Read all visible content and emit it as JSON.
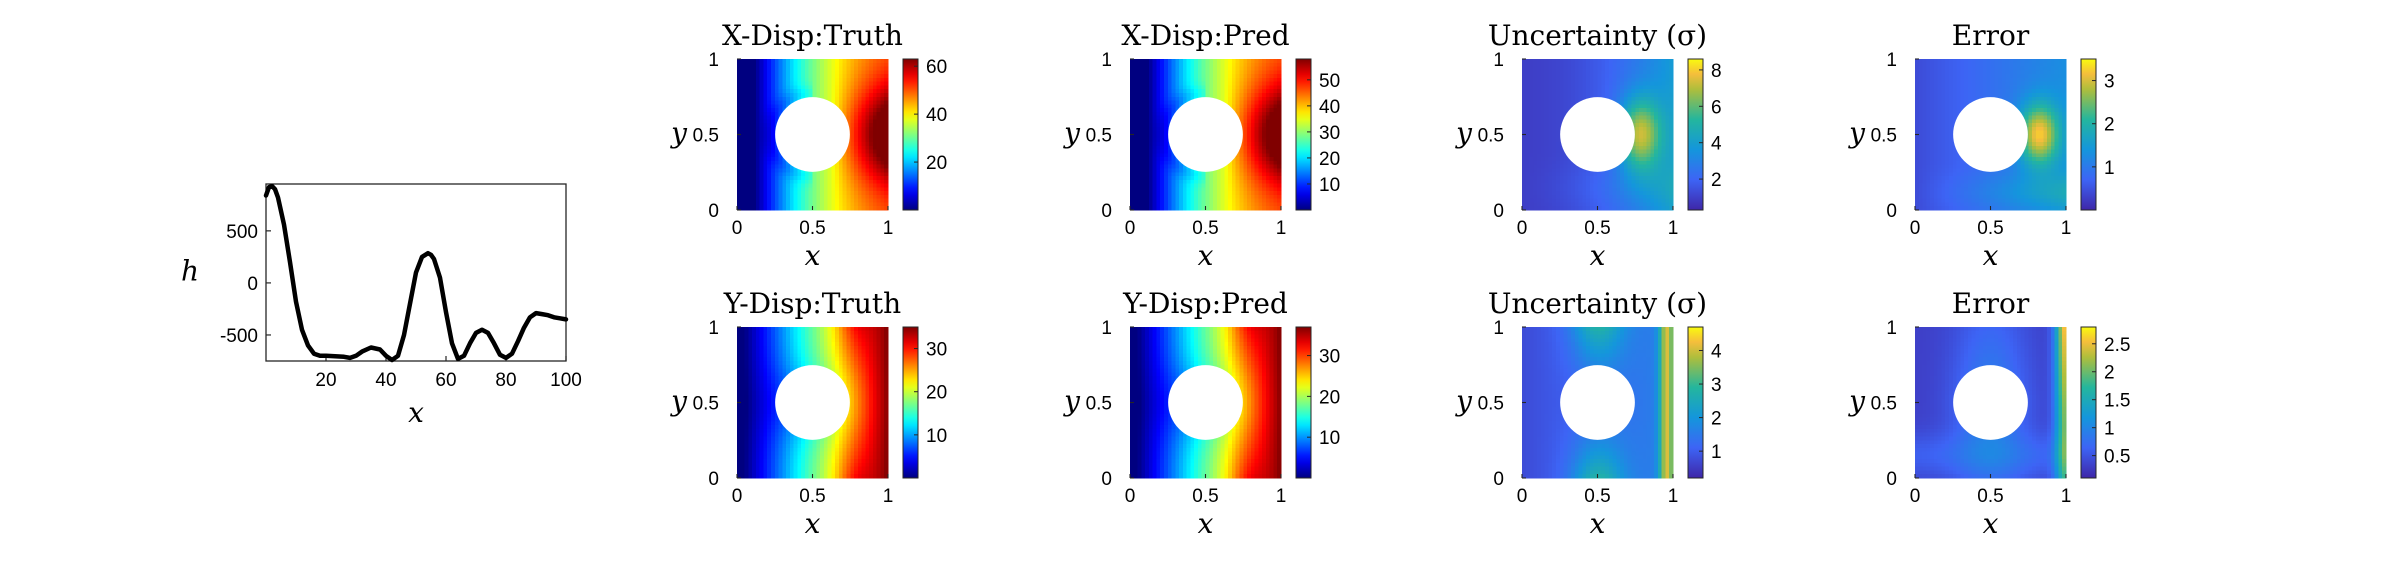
{
  "chart_data": [
    {
      "type": "line",
      "xlabel": "x",
      "ylabel": "h",
      "xlim": [
        0,
        100
      ],
      "ylim": [
        -750,
        950
      ],
      "xticks": [
        "20",
        "40",
        "60",
        "80",
        "100"
      ],
      "yticks": [
        "500",
        "0",
        "-500"
      ],
      "x": [
        0,
        1,
        2,
        3,
        4,
        6,
        8,
        10,
        12,
        14,
        16,
        18,
        20,
        23,
        26,
        28,
        30,
        32,
        35,
        38,
        40,
        42,
        44,
        46,
        48,
        50,
        52,
        54,
        55,
        56,
        58,
        60,
        62,
        64,
        66,
        68,
        70,
        72,
        74,
        76,
        78,
        80,
        82,
        84,
        86,
        88,
        90,
        92,
        94,
        96,
        98,
        100
      ],
      "y": [
        840,
        920,
        930,
        900,
        820,
        560,
        200,
        -180,
        -450,
        -600,
        -680,
        -700,
        -700,
        -705,
        -710,
        -720,
        -700,
        -660,
        -620,
        -640,
        -700,
        -740,
        -700,
        -500,
        -200,
        100,
        250,
        285,
        270,
        230,
        50,
        -280,
        -580,
        -730,
        -700,
        -580,
        -480,
        -450,
        -480,
        -580,
        -690,
        -720,
        -680,
        -560,
        -430,
        -330,
        -290,
        -300,
        -310,
        -330,
        -340,
        -350
      ],
      "color": "#000000"
    },
    {
      "type": "heatmap",
      "title": "X-Disp:Truth",
      "field": "xdisp",
      "colormap": "jet",
      "vmin": 0,
      "vmax": 63,
      "colorbar_ticks": [
        20,
        40,
        60
      ],
      "xlabel": "x",
      "ylabel": "y",
      "xticks": [
        "0",
        "0.5",
        "1"
      ],
      "yticks": [
        "0",
        "0.5",
        "1"
      ],
      "hole": {
        "cx": 0.5,
        "cy": 0.5,
        "r": 0.25
      }
    },
    {
      "type": "heatmap",
      "title": "X-Disp:Pred",
      "field": "xdisp",
      "colormap": "jet",
      "vmin": 0,
      "vmax": 58,
      "colorbar_ticks": [
        10,
        20,
        30,
        40,
        50
      ],
      "xlabel": "x",
      "ylabel": "y",
      "xticks": [
        "0",
        "0.5",
        "1"
      ],
      "yticks": [
        "0",
        "0.5",
        "1"
      ],
      "hole": {
        "cx": 0.5,
        "cy": 0.5,
        "r": 0.25
      }
    },
    {
      "type": "heatmap",
      "title": "Uncertainty (σ)",
      "field": "xunc",
      "colormap": "parula",
      "vmin": 0.3,
      "vmax": 8.6,
      "colorbar_ticks": [
        2,
        4,
        6,
        8
      ],
      "xlabel": "x",
      "ylabel": "y",
      "xticks": [
        "0",
        "0.5",
        "1"
      ],
      "yticks": [
        "0",
        "0.5",
        "1"
      ],
      "hole": {
        "cx": 0.5,
        "cy": 0.5,
        "r": 0.25
      }
    },
    {
      "type": "heatmap",
      "title": "Error",
      "field": "xerr",
      "colormap": "parula",
      "vmin": 0,
      "vmax": 3.5,
      "colorbar_ticks": [
        1,
        2,
        3
      ],
      "xlabel": "x",
      "ylabel": "y",
      "xticks": [
        "0",
        "0.5",
        "1"
      ],
      "yticks": [
        "0",
        "0.5",
        "1"
      ],
      "hole": {
        "cx": 0.5,
        "cy": 0.5,
        "r": 0.25
      }
    },
    {
      "type": "heatmap",
      "title": "Y-Disp:Truth",
      "field": "ydisp",
      "colormap": "jet",
      "vmin": 0,
      "vmax": 35,
      "colorbar_ticks": [
        10,
        20,
        30
      ],
      "xlabel": "x",
      "ylabel": "y",
      "xticks": [
        "0",
        "0.5",
        "1"
      ],
      "yticks": [
        "0",
        "0.5",
        "1"
      ],
      "hole": {
        "cx": 0.5,
        "cy": 0.5,
        "r": 0.25
      }
    },
    {
      "type": "heatmap",
      "title": "Y-Disp:Pred",
      "field": "ydisp",
      "colormap": "jet",
      "vmin": 0,
      "vmax": 37,
      "colorbar_ticks": [
        10,
        20,
        30
      ],
      "xlabel": "x",
      "ylabel": "y",
      "xticks": [
        "0",
        "0.5",
        "1"
      ],
      "yticks": [
        "0",
        "0.5",
        "1"
      ],
      "hole": {
        "cx": 0.5,
        "cy": 0.5,
        "r": 0.25
      }
    },
    {
      "type": "heatmap",
      "title": "Uncertainty (σ)",
      "field": "yunc",
      "colormap": "parula",
      "vmin": 0.2,
      "vmax": 4.7,
      "colorbar_ticks": [
        1,
        2,
        3,
        4
      ],
      "xlabel": "x",
      "ylabel": "y",
      "xticks": [
        "0",
        "0.5",
        "1"
      ],
      "yticks": [
        "0",
        "0.5",
        "1"
      ],
      "hole": {
        "cx": 0.5,
        "cy": 0.5,
        "r": 0.25
      }
    },
    {
      "type": "heatmap",
      "title": "Error",
      "field": "yerr",
      "colormap": "parula",
      "vmin": 0.1,
      "vmax": 2.8,
      "colorbar_ticks": [
        0.5,
        1,
        1.5,
        2,
        2.5
      ],
      "xlabel": "x",
      "ylabel": "y",
      "xticks": [
        "0",
        "0.5",
        "1"
      ],
      "yticks": [
        "0",
        "0.5",
        "1"
      ],
      "hole": {
        "cx": 0.5,
        "cy": 0.5,
        "r": 0.25
      }
    }
  ]
}
